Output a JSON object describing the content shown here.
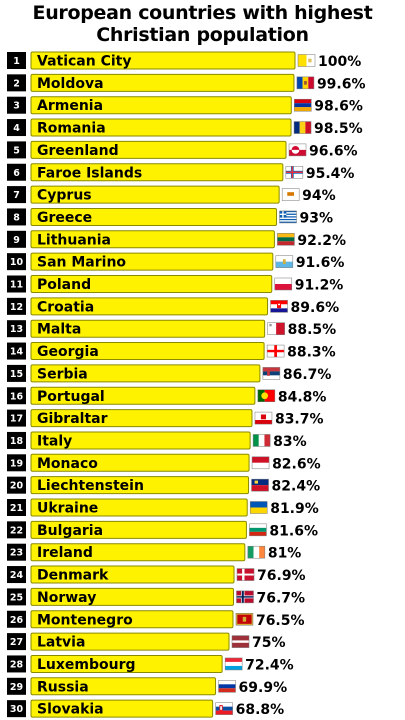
{
  "chart_data": {
    "type": "bar",
    "orientation": "horizontal",
    "title": "European countries with highest Christian population",
    "value_suffix": "%",
    "xlim": [
      0,
      100
    ],
    "bar_color": "#fff200",
    "rows": [
      {
        "rank": "1",
        "name": "Vatican City",
        "value": 100,
        "label": "100%",
        "flag": "vatican-flag-icon"
      },
      {
        "rank": "2",
        "name": "Moldova",
        "value": 99.6,
        "label": "99.6%",
        "flag": "moldova-flag-icon"
      },
      {
        "rank": "3",
        "name": "Armenia",
        "value": 98.6,
        "label": "98.6%",
        "flag": "armenia-flag-icon"
      },
      {
        "rank": "4",
        "name": "Romania",
        "value": 98.5,
        "label": "98.5%",
        "flag": "romania-flag-icon"
      },
      {
        "rank": "5",
        "name": "Greenland",
        "value": 96.6,
        "label": "96.6%",
        "flag": "greenland-flag-icon"
      },
      {
        "rank": "6",
        "name": "Faroe Islands",
        "value": 95.4,
        "label": "95.4%",
        "flag": "faroe-flag-icon"
      },
      {
        "rank": "7",
        "name": "Cyprus",
        "value": 94,
        "label": "94%",
        "flag": "cyprus-flag-icon"
      },
      {
        "rank": "8",
        "name": "Greece",
        "value": 93,
        "label": "93%",
        "flag": "greece-flag-icon"
      },
      {
        "rank": "9",
        "name": "Lithuania",
        "value": 92.2,
        "label": "92.2%",
        "flag": "lithuania-flag-icon"
      },
      {
        "rank": "10",
        "name": "San Marino",
        "value": 91.6,
        "label": "91.6%",
        "flag": "san-marino-flag-icon"
      },
      {
        "rank": "11",
        "name": "Poland",
        "value": 91.2,
        "label": "91.2%",
        "flag": "poland-flag-icon"
      },
      {
        "rank": "12",
        "name": "Croatia",
        "value": 89.6,
        "label": "89.6%",
        "flag": "croatia-flag-icon"
      },
      {
        "rank": "13",
        "name": "Malta",
        "value": 88.5,
        "label": "88.5%",
        "flag": "malta-flag-icon"
      },
      {
        "rank": "14",
        "name": "Georgia",
        "value": 88.3,
        "label": "88.3%",
        "flag": "georgia-flag-icon"
      },
      {
        "rank": "15",
        "name": "Serbia",
        "value": 86.7,
        "label": "86.7%",
        "flag": "serbia-flag-icon"
      },
      {
        "rank": "16",
        "name": "Portugal",
        "value": 84.8,
        "label": "84.8%",
        "flag": "portugal-flag-icon"
      },
      {
        "rank": "17",
        "name": "Gibraltar",
        "value": 83.7,
        "label": "83.7%",
        "flag": "gibraltar-flag-icon"
      },
      {
        "rank": "18",
        "name": "Italy",
        "value": 83,
        "label": "83%",
        "flag": "italy-flag-icon"
      },
      {
        "rank": "19",
        "name": "Monaco",
        "value": 82.6,
        "label": "82.6%",
        "flag": "monaco-flag-icon"
      },
      {
        "rank": "20",
        "name": "Liechtenstein",
        "value": 82.4,
        "label": "82.4%",
        "flag": "liechtenstein-flag-icon"
      },
      {
        "rank": "21",
        "name": "Ukraine",
        "value": 81.9,
        "label": "81.9%",
        "flag": "ukraine-flag-icon"
      },
      {
        "rank": "22",
        "name": "Bulgaria",
        "value": 81.6,
        "label": "81.6%",
        "flag": "bulgaria-flag-icon"
      },
      {
        "rank": "23",
        "name": "Ireland",
        "value": 81,
        "label": "81%",
        "flag": "ireland-flag-icon"
      },
      {
        "rank": "24",
        "name": "Denmark",
        "value": 76.9,
        "label": "76.9%",
        "flag": "denmark-flag-icon"
      },
      {
        "rank": "25",
        "name": "Norway",
        "value": 76.7,
        "label": "76.7%",
        "flag": "norway-flag-icon"
      },
      {
        "rank": "26",
        "name": "Montenegro",
        "value": 76.5,
        "label": "76.5%",
        "flag": "montenegro-flag-icon"
      },
      {
        "rank": "27",
        "name": "Latvia",
        "value": 75,
        "label": "75%",
        "flag": "latvia-flag-icon"
      },
      {
        "rank": "28",
        "name": "Luxembourg",
        "value": 72.4,
        "label": "72.4%",
        "flag": "luxembourg-flag-icon"
      },
      {
        "rank": "29",
        "name": "Russia",
        "value": 69.9,
        "label": "69.9%",
        "flag": "russia-flag-icon"
      },
      {
        "rank": "30",
        "name": "Slovakia",
        "value": 68.8,
        "label": "68.8%",
        "flag": "slovakia-flag-icon"
      }
    ]
  }
}
